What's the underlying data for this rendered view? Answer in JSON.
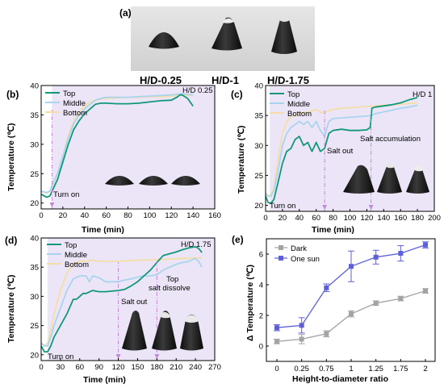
{
  "figure_a": {
    "panel_label": "(a)",
    "sample_labels": [
      "H/D-0.25",
      "H/D-1",
      "H/D-1.75"
    ]
  },
  "colors": {
    "top": "#13977a",
    "middle": "#a9d4ef",
    "bottom": "#f5dea5",
    "dark": "#a3a3a3",
    "one_sun": "#5c5fd8",
    "shade": "#ece5f7",
    "marker": "#c18ad8"
  },
  "chart_data": [
    {
      "panel": "(b)",
      "type": "line",
      "title": "H/D 0.25",
      "xlabel": "Time (min)",
      "ylabel": "Temperature (℃)",
      "xlim": [
        0,
        160
      ],
      "ylim": [
        19,
        40
      ],
      "xticks": [
        0,
        20,
        40,
        60,
        80,
        100,
        120,
        140,
        160
      ],
      "yticks": [
        20,
        25,
        30,
        35,
        40
      ],
      "legend_position": "top-left",
      "annotations": [
        {
          "text": "Turn on",
          "x": 10
        }
      ],
      "series": [
        {
          "name": "Top",
          "color": "top",
          "x": [
            0,
            5,
            8,
            10,
            15,
            20,
            25,
            30,
            35,
            40,
            45,
            50,
            55,
            60,
            70,
            80,
            90,
            100,
            110,
            120,
            125,
            128,
            130,
            135,
            140
          ],
          "y": [
            21.5,
            21,
            21.2,
            22,
            24,
            27,
            30,
            32.5,
            34,
            35.2,
            36,
            36.8,
            37,
            37,
            36.9,
            36.9,
            37,
            37.2,
            37.4,
            37.5,
            38,
            38.4,
            38.4,
            37.8,
            36.5
          ]
        },
        {
          "name": "Middle",
          "color": "middle",
          "x": [
            0,
            5,
            8,
            10,
            15,
            20,
            25,
            30,
            35,
            40,
            45,
            50,
            55,
            60,
            70,
            80,
            90,
            100,
            110,
            120,
            125,
            130,
            135,
            140
          ],
          "y": [
            22,
            21.8,
            22,
            23,
            25,
            28,
            31,
            33.5,
            35,
            36,
            36.8,
            37.5,
            37.8,
            38,
            38,
            38,
            38.1,
            38.2,
            38.3,
            38.4,
            38.5,
            38.6,
            38.5,
            38.4
          ]
        },
        {
          "name": "Bottom",
          "color": "bottom",
          "x": [
            0,
            5,
            8,
            10,
            15,
            20,
            25,
            30,
            35,
            40,
            45,
            50,
            55,
            60,
            70,
            80,
            90,
            100,
            110,
            120,
            125,
            130,
            135,
            140
          ],
          "y": [
            22,
            21.7,
            22,
            22.8,
            25,
            28,
            31.5,
            34,
            35.5,
            36.5,
            37.2,
            37.5,
            37.7,
            37.8,
            37.9,
            38,
            38,
            38.1,
            38.1,
            38.2,
            38.3,
            38.4,
            38.3,
            38.3
          ]
        }
      ]
    },
    {
      "panel": "(c)",
      "type": "line",
      "title": "H/D 1",
      "xlabel": "Time (min)",
      "ylabel": "Temperature (℃)",
      "xlim": [
        0,
        200
      ],
      "ylim": [
        19,
        40
      ],
      "xticks": [
        0,
        20,
        40,
        60,
        80,
        100,
        120,
        140,
        160,
        180,
        200
      ],
      "yticks": [
        20,
        25,
        30,
        35,
        40
      ],
      "legend_position": "top-left",
      "annotations": [
        {
          "text": "Turn on",
          "x": 5
        },
        {
          "text": "Salt out",
          "x": 70
        },
        {
          "text": "Salt accumulation",
          "x": 125
        }
      ],
      "series": [
        {
          "name": "Top",
          "color": "top",
          "x": [
            0,
            3,
            6,
            10,
            15,
            20,
            25,
            30,
            35,
            40,
            45,
            50,
            55,
            60,
            65,
            70,
            75,
            80,
            90,
            100,
            110,
            120,
            124,
            126,
            130,
            140,
            150,
            160,
            170,
            180
          ],
          "y": [
            21.5,
            20.5,
            20.3,
            21,
            24,
            27,
            29,
            29.5,
            31,
            31.5,
            30,
            30.5,
            29,
            30.5,
            29,
            29.5,
            32,
            32.5,
            32.7,
            32.5,
            32.5,
            32.6,
            33,
            36.2,
            36.4,
            36.6,
            36.8,
            37.1,
            37.6,
            38
          ]
        },
        {
          "name": "Middle",
          "color": "middle",
          "x": [
            0,
            3,
            6,
            10,
            15,
            20,
            25,
            30,
            35,
            40,
            45,
            50,
            55,
            60,
            65,
            70,
            75,
            80,
            90,
            100,
            110,
            120,
            125,
            130,
            140,
            150,
            160,
            170,
            180
          ],
          "y": [
            22,
            21.5,
            21.5,
            22.5,
            26,
            30,
            32,
            33,
            33.5,
            34,
            33.5,
            34,
            33,
            34,
            32.5,
            31.5,
            34,
            34.5,
            34.6,
            34.7,
            34.8,
            34.9,
            35,
            35.3,
            35.6,
            35.9,
            36.2,
            36.4,
            36.7
          ]
        },
        {
          "name": "Bottom",
          "color": "bottom",
          "x": [
            0,
            3,
            6,
            10,
            15,
            20,
            25,
            30,
            35,
            40,
            45,
            50,
            55,
            60,
            65,
            70,
            75,
            80,
            90,
            100,
            110,
            120,
            130,
            140,
            150,
            160,
            170,
            180
          ],
          "y": [
            22,
            21.5,
            21.8,
            23,
            28,
            32,
            34,
            34.8,
            35,
            35.3,
            35.5,
            35.5,
            35.8,
            36,
            35.5,
            35.5,
            35.8,
            36,
            36.2,
            36.3,
            36.4,
            36.5,
            36.6,
            36.7,
            36.8,
            36.9,
            37,
            37.1
          ]
        }
      ]
    },
    {
      "panel": "(d)",
      "type": "line",
      "title": "H/D 1.75",
      "xlabel": "Time (min)",
      "ylabel": "Temperature (℃)",
      "xlim": [
        0,
        270
      ],
      "ylim": [
        19,
        40
      ],
      "xticks": [
        0,
        30,
        60,
        90,
        120,
        150,
        180,
        210,
        240,
        270
      ],
      "yticks": [
        20,
        25,
        30,
        35,
        40
      ],
      "legend_position": "top-left",
      "annotations": [
        {
          "text": "Turn on",
          "x": 10
        },
        {
          "text": "Salt out",
          "x": 120
        },
        {
          "text": "Top\nsalt dissolve",
          "x": 180
        }
      ],
      "series": [
        {
          "name": "Top",
          "color": "top",
          "x": [
            0,
            5,
            10,
            15,
            20,
            30,
            40,
            50,
            55,
            60,
            65,
            70,
            80,
            90,
            100,
            110,
            120,
            130,
            140,
            150,
            160,
            170,
            180,
            190,
            200,
            210,
            220,
            230,
            240,
            245,
            250
          ],
          "y": [
            21.5,
            20.5,
            20.5,
            21.5,
            23,
            25,
            27,
            29.5,
            29.5,
            30,
            30.5,
            30.5,
            31,
            30.8,
            30.8,
            30.9,
            31,
            31.2,
            31.8,
            32.5,
            33.5,
            34.5,
            35.8,
            37,
            37.3,
            37.6,
            38,
            38.3,
            38.5,
            38.2,
            37.5
          ]
        },
        {
          "name": "Middle",
          "color": "middle",
          "x": [
            0,
            5,
            10,
            15,
            20,
            30,
            40,
            50,
            60,
            70,
            75,
            80,
            90,
            100,
            110,
            120,
            130,
            140,
            150,
            160,
            170,
            180,
            190,
            200,
            210,
            220,
            230,
            240,
            245,
            250
          ],
          "y": [
            22,
            21.5,
            21.5,
            23,
            25,
            28,
            31,
            33,
            33.5,
            33.5,
            32.5,
            33.5,
            33.2,
            32.5,
            32.5,
            32.5,
            32.8,
            33,
            33.3,
            33.5,
            33.5,
            33.7,
            34.5,
            35,
            35.5,
            35.8,
            36,
            36.5,
            36,
            35
          ]
        },
        {
          "name": "Bottom",
          "color": "bottom",
          "x": [
            0,
            5,
            10,
            15,
            20,
            30,
            40,
            50,
            60,
            70,
            80,
            90,
            100,
            110,
            120,
            130,
            140,
            150,
            160,
            170,
            180,
            190,
            200,
            210,
            220,
            230,
            240,
            250
          ],
          "y": [
            22,
            21.5,
            22,
            24,
            27,
            31,
            34,
            35.5,
            36,
            36,
            36.2,
            36,
            36,
            36,
            36,
            36.1,
            36.1,
            36.2,
            36.2,
            36.2,
            36.3,
            36.3,
            36.4,
            36.4,
            36.5,
            36.5,
            36.6,
            36.6
          ]
        }
      ]
    },
    {
      "panel": "(e)",
      "type": "line",
      "title": "",
      "xlabel": "Height-to-diameter ratio",
      "ylabel": "Δ Temperature (℃)",
      "categories": [
        "0",
        "0.25",
        "0.75",
        "1",
        "1.25",
        "1.75",
        "2"
      ],
      "ylim": [
        -1,
        7
      ],
      "yticks": [
        0,
        2,
        4,
        6
      ],
      "legend_position": "top-left",
      "series": [
        {
          "name": "Dark",
          "color": "dark",
          "values": [
            0.3,
            0.45,
            0.8,
            2.1,
            2.8,
            3.1,
            3.6
          ],
          "errors": [
            0.15,
            0.3,
            0.2,
            0.2,
            0.15,
            0.15,
            0.15
          ]
        },
        {
          "name": "One sun",
          "color": "one_sun",
          "values": [
            1.2,
            1.35,
            3.8,
            5.2,
            5.8,
            6.05,
            6.6
          ],
          "errors": [
            0.2,
            0.5,
            0.25,
            1.0,
            0.45,
            0.5,
            0.2
          ]
        }
      ]
    }
  ]
}
